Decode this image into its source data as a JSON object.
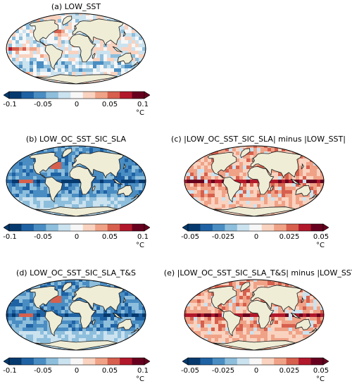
{
  "panels": [
    {
      "id": "a",
      "title": "(a) LOW_SST",
      "colorbar": {
        "ticks": [
          "-0.1",
          "-0.05",
          "0",
          "0.05",
          "0.1"
        ],
        "unit": "°C",
        "range": [
          -0.1,
          0.1
        ]
      },
      "pattern": "mixed"
    },
    {
      "id": "b",
      "title": "(b) LOW_OC_SST_SIC_SLA",
      "colorbar": {
        "ticks": [
          "-0.1",
          "-0.05",
          "0",
          "0.05",
          "0.1"
        ],
        "unit": "°C",
        "range": [
          -0.1,
          0.1
        ]
      },
      "pattern": "cool"
    },
    {
      "id": "c",
      "title": "(c) |LOW_OC_SST_SIC_SLA| minus |LOW_SST|",
      "colorbar": {
        "ticks": [
          "-0.05",
          "-0.025",
          "0",
          "0.025",
          "0.05"
        ],
        "unit": "°C",
        "range": [
          -0.05,
          0.05
        ]
      },
      "pattern": "warm"
    },
    {
      "id": "d",
      "title": "(d) LOW_OC_SST_SIC_SLA_T&S",
      "colorbar": {
        "ticks": [
          "-0.1",
          "-0.05",
          "0",
          "0.05",
          "0.1"
        ],
        "unit": "°C",
        "range": [
          -0.1,
          0.1
        ]
      },
      "pattern": "cool"
    },
    {
      "id": "e",
      "title": "(e) |LOW_OC_SST_SIC_SLA_T&S| minus |LOW_SST|",
      "colorbar": {
        "ticks": [
          "-0.05",
          "-0.025",
          "0",
          "0.025",
          "0.05"
        ],
        "unit": "°C",
        "range": [
          -0.05,
          0.05
        ]
      },
      "pattern": "warm"
    }
  ],
  "colors": {
    "land": "#efedd6",
    "coast": "#1a1a1a",
    "cmap": [
      "#063a6e",
      "#1f62a4",
      "#4a8dc2",
      "#8dbedc",
      "#cbe2ef",
      "#f7f7f7",
      "#f9d3c0",
      "#f0a287",
      "#d6604d",
      "#b2182b",
      "#67001f"
    ]
  }
}
